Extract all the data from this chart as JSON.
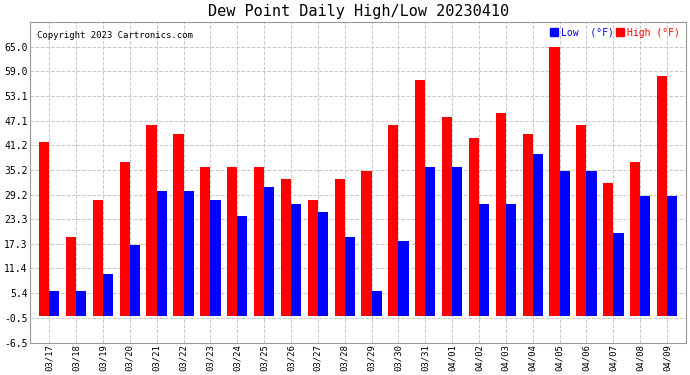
{
  "title": "Dew Point Daily High/Low 20230410",
  "copyright": "Copyright 2023 Cartronics.com",
  "dates": [
    "03/17",
    "03/18",
    "03/19",
    "03/20",
    "03/21",
    "03/22",
    "03/23",
    "03/24",
    "03/25",
    "03/26",
    "03/27",
    "03/28",
    "03/29",
    "03/30",
    "03/31",
    "04/01",
    "04/02",
    "04/03",
    "04/04",
    "04/05",
    "04/06",
    "04/07",
    "04/08",
    "04/09"
  ],
  "high": [
    42,
    19,
    28,
    37,
    46,
    44,
    36,
    36,
    36,
    33,
    28,
    33,
    35,
    46,
    57,
    48,
    43,
    49,
    44,
    65,
    46,
    32,
    37,
    58
  ],
  "low": [
    6,
    6,
    10,
    17,
    30,
    30,
    28,
    24,
    31,
    27,
    25,
    19,
    6,
    18,
    36,
    36,
    27,
    27,
    39,
    35,
    35,
    20,
    29,
    29
  ],
  "ylim": [
    -6.5,
    71.0
  ],
  "yticks": [
    -6.5,
    -0.5,
    5.4,
    11.4,
    17.3,
    23.3,
    29.2,
    35.2,
    41.2,
    47.1,
    53.1,
    59.0,
    65.0
  ],
  "high_color": "#FF0000",
  "low_color": "#0000FF",
  "background_color": "#FFFFFF",
  "plot_bg_color": "#FFFFFF",
  "grid_color": "#C8C8C8",
  "title_fontsize": 11,
  "legend_low_label": "Low  (°F)",
  "legend_high_label": "High (°F)",
  "bar_width": 0.38
}
